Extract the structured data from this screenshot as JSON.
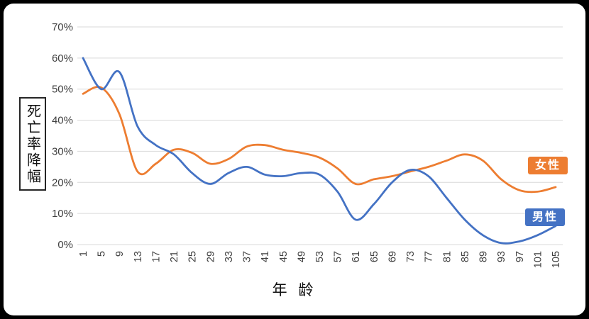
{
  "page": {
    "background_color": "#000000",
    "card_background_color": "#ffffff"
  },
  "chart_data": {
    "type": "line",
    "title": "",
    "xlabel": "年 龄",
    "ylabel": "死亡率降幅",
    "x": [
      1,
      5,
      9,
      13,
      17,
      21,
      25,
      29,
      33,
      37,
      41,
      45,
      49,
      53,
      57,
      61,
      65,
      69,
      73,
      77,
      81,
      85,
      89,
      93,
      97,
      101,
      105
    ],
    "series": [
      {
        "name": "女性",
        "color": "#ED7D31",
        "values": [
          48.5,
          50.5,
          42,
          23.5,
          26,
          30.5,
          29.5,
          26,
          27.5,
          31.5,
          32,
          30.5,
          29.5,
          28,
          24.5,
          19.5,
          21,
          22,
          23.5,
          25,
          27,
          29,
          27,
          21,
          17.5,
          17,
          18.5
        ]
      },
      {
        "name": "男性",
        "color": "#4472C4",
        "values": [
          60,
          50,
          55.5,
          38,
          32,
          29,
          23,
          19.5,
          23,
          25,
          22.5,
          22,
          23,
          22.5,
          17,
          8,
          13,
          20,
          24,
          22,
          15,
          8,
          3,
          0.5,
          1,
          3,
          6
        ]
      }
    ],
    "ylim": [
      0,
      70
    ],
    "ytick_step": 10,
    "ytick_labels": [
      "0%",
      "10%",
      "20%",
      "30%",
      "40%",
      "50%",
      "60%",
      "70%"
    ],
    "grid": true,
    "grid_color": "#D9D9D9",
    "tick_label_color": "#3f3f3f",
    "legend_position": "right-inline"
  }
}
